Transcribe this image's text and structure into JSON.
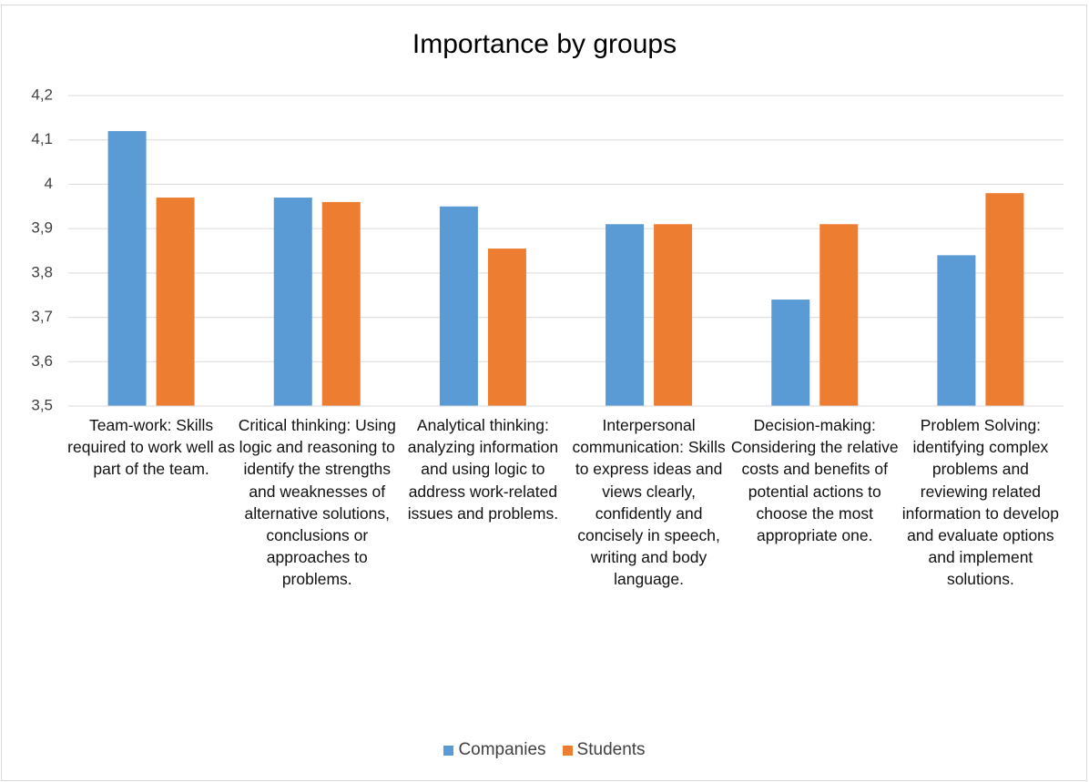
{
  "chart_data": {
    "type": "bar",
    "title": "Importance by groups",
    "categories": [
      "Team-work: Skills required to work well as part of the team.",
      "Critical thinking: Using logic and reasoning to identify the strengths and weaknesses of alternative solutions, conclusions or approaches to problems.",
      "Analytical thinking: analyzing information and using logic to address work-related issues and problems.",
      "Interpersonal communication: Skills to express ideas and views clearly, confidently and concisely in speech, writing and body language.",
      "Decision-making: Considering the relative costs and benefits of potential actions to choose the most appropriate one.",
      "Problem Solving: identifying complex problems and reviewing related information to develop and evaluate options and implement solutions."
    ],
    "series": [
      {
        "name": "Companies",
        "color": "#5b9bd5",
        "values": [
          4.12,
          3.97,
          3.95,
          3.91,
          3.74,
          3.84
        ]
      },
      {
        "name": "Students",
        "color": "#ed7d31",
        "values": [
          3.97,
          3.96,
          3.855,
          3.91,
          3.91,
          3.98
        ]
      }
    ],
    "ylim": [
      3.5,
      4.2
    ],
    "yticks": [
      {
        "value": 3.5,
        "label": "3,5"
      },
      {
        "value": 3.6,
        "label": "3,6"
      },
      {
        "value": 3.7,
        "label": "3,7"
      },
      {
        "value": 3.8,
        "label": "3,8"
      },
      {
        "value": 3.9,
        "label": "3,9"
      },
      4,
      {
        "value": 4.1,
        "label": "4,1"
      },
      {
        "value": 4.2,
        "label": "4,2"
      }
    ],
    "grid": true,
    "legend": "bottom"
  }
}
